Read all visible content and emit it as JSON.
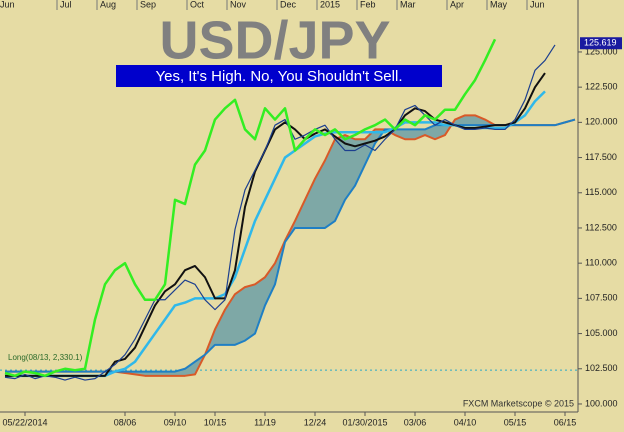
{
  "chart_data": {
    "type": "line",
    "title": "USD/JPY",
    "subtitle": "Yes, It's High. No, You Shouldn't Sell.",
    "position_label": "Long(08/13, 2,330.1)",
    "position_line": 102.4,
    "credit": "FXCM Marketscope © 2015",
    "price_marker": 125.619,
    "categories": [
      null,
      null,
      "05/22/2014",
      null,
      null,
      null,
      null,
      null,
      null,
      null,
      null,
      null,
      "08/06",
      null,
      null,
      null,
      null,
      "09/10",
      null,
      null,
      null,
      "10/15",
      null,
      null,
      null,
      null,
      "11/19",
      null,
      null,
      null,
      null,
      "12/24",
      null,
      null,
      null,
      null,
      "01/30/2015",
      null,
      null,
      null,
      null,
      "03/06",
      null,
      null,
      null,
      null,
      "04/10",
      null,
      null,
      null,
      null,
      "05/15",
      null,
      null,
      null,
      null,
      "06/15",
      null
    ],
    "top_categories": [
      "Jun",
      null,
      null,
      null,
      null,
      null,
      "Jul",
      null,
      null,
      null,
      "Aug",
      null,
      null,
      null,
      "Sep",
      null,
      null,
      null,
      null,
      "Oct",
      null,
      null,
      null,
      "Nov",
      null,
      null,
      null,
      null,
      "Dec",
      null,
      null,
      null,
      "2015",
      null,
      null,
      null,
      "Feb",
      null,
      null,
      null,
      "Mar",
      null,
      null,
      null,
      null,
      "Apr",
      null,
      null,
      null,
      "May",
      null,
      null,
      null,
      "Jun",
      null,
      null,
      null,
      null
    ],
    "ylim": [
      99.43,
      128.69
    ],
    "yticks": [
      {
        "value": 100,
        "label": "100.000"
      },
      {
        "value": 102.5,
        "label": "102.500"
      },
      {
        "value": 105,
        "label": "105.000"
      },
      {
        "value": 107.5,
        "label": "107.500"
      },
      {
        "value": 110,
        "label": "110.000"
      },
      {
        "value": 112.5,
        "label": "112.500"
      },
      {
        "value": 115,
        "label": "115.000"
      },
      {
        "value": 117.5,
        "label": "117.500"
      },
      {
        "value": 120,
        "label": "120.000"
      },
      {
        "value": 122.5,
        "label": "122.500"
      },
      {
        "value": 125,
        "label": "125.000"
      }
    ],
    "cloud_color": "#7ea8a6",
    "series": [
      {
        "color": "#d85a28",
        "values": [
          102.3,
          102.3,
          102.3,
          102.3,
          102.3,
          102.3,
          102.3,
          102.3,
          102.3,
          102.3,
          102.3,
          102.3,
          102.2,
          102.1,
          102,
          102,
          102,
          102,
          102,
          102.1,
          103.5,
          105.3,
          106.7,
          107.8,
          108.3,
          108.5,
          109,
          110,
          111.6,
          113,
          114.5,
          116,
          117.3,
          118.8,
          119.1,
          118.8,
          118.8,
          119.5,
          119.5,
          119.1,
          118.8,
          118.8,
          119.1,
          118.8,
          119.1,
          120.2,
          120.5,
          120.5,
          120.2,
          119.8,
          119.8,
          119.8,
          119.8,
          119.8,
          119.8,
          119.8,
          120,
          120.2
        ]
      },
      {
        "color": "#1f7fc4",
        "values": [
          102.3,
          102.3,
          102.3,
          102.3,
          102.3,
          102.3,
          102.3,
          102.3,
          102.3,
          102.3,
          102.3,
          102.3,
          102.3,
          102.3,
          102.3,
          102.3,
          102.3,
          102.3,
          102.5,
          103,
          103.5,
          104.2,
          104.2,
          104.2,
          104.5,
          105,
          107,
          108.5,
          111.5,
          112.5,
          112.5,
          112.5,
          112.5,
          113,
          114.5,
          115.5,
          117,
          118.5,
          119.5,
          119.5,
          119.5,
          119.5,
          119.5,
          119.8,
          119.8,
          119.8,
          119.8,
          119.8,
          119.8,
          119.8,
          119.8,
          119.8,
          119.8,
          119.8,
          119.8,
          119.8,
          120,
          120.2
        ]
      },
      {
        "color": "#2fb8ea",
        "values": [
          102,
          102,
          102,
          102,
          102,
          102,
          102,
          102,
          102,
          102,
          102,
          102.3,
          102.5,
          103,
          104,
          105,
          106,
          107,
          107.2,
          107.5,
          107.5,
          107.5,
          107.8,
          109,
          111,
          113,
          114.5,
          116,
          117.5,
          118,
          118.5,
          119,
          119.2,
          119.3,
          119.3,
          119.3,
          119.3,
          119.3,
          119.3,
          119.6,
          120,
          120,
          120,
          120,
          119.8,
          119.8,
          119.6,
          119.6,
          119.6,
          119.6,
          119.6,
          120,
          120.5,
          121.5,
          122.2,
          null,
          null,
          null
        ]
      },
      {
        "color": "#111111",
        "values": [
          102,
          102,
          102,
          102,
          102,
          102,
          102,
          102,
          102,
          102,
          102,
          103,
          103.2,
          104,
          105.5,
          107,
          108,
          108.5,
          109.5,
          109.8,
          109,
          107.5,
          107.5,
          109.5,
          114,
          116.5,
          118,
          119.5,
          120,
          119.5,
          118.8,
          119.2,
          119.5,
          119,
          118.5,
          118.3,
          118.5,
          118.7,
          119,
          119.5,
          120.5,
          121,
          120.8,
          120.2,
          120,
          119.8,
          119.6,
          119.6,
          119.7,
          119.8,
          119.8,
          120,
          121,
          122.5,
          123.5,
          null,
          null,
          null
        ]
      },
      {
        "color": "#1c3f8f",
        "values": [
          101.9,
          101.8,
          102.1,
          101.8,
          102,
          101.9,
          101.7,
          101.9,
          101.7,
          101.8,
          102.3,
          102.8,
          103.5,
          104.6,
          106,
          107.4,
          107.4,
          108.1,
          108.8,
          108.5,
          107.4,
          106.7,
          107.4,
          112.4,
          115.2,
          116.6,
          118,
          119.8,
          120.2,
          118.8,
          119.1,
          119.5,
          119.8,
          118.8,
          118,
          118,
          118.4,
          118,
          118.8,
          119.5,
          120.9,
          121.2,
          120.5,
          119.8,
          120.2,
          119.8,
          119.5,
          119.5,
          119.6,
          119.5,
          119.5,
          120.2,
          121.6,
          123.7,
          124.4,
          125.5,
          null,
          null
        ]
      },
      {
        "color": "#33ee22",
        "values": [
          102.2,
          102,
          102.3,
          102.2,
          102,
          102.3,
          102.5,
          102.4,
          102.5,
          106,
          108.5,
          109.5,
          110,
          108.5,
          107.4,
          107.4,
          108.5,
          114.5,
          114.2,
          117,
          118,
          120.2,
          121,
          121.6,
          119.5,
          118.8,
          121,
          120.2,
          121,
          118,
          118.8,
          119.5,
          119.1,
          119.5,
          118.8,
          119.1,
          119.5,
          119.8,
          120.2,
          119.5,
          120.2,
          119.8,
          120.5,
          120.2,
          120.9,
          120.9,
          122,
          123,
          124.4,
          125.9,
          null,
          null,
          null,
          null,
          null,
          null,
          null,
          null
        ]
      }
    ]
  }
}
